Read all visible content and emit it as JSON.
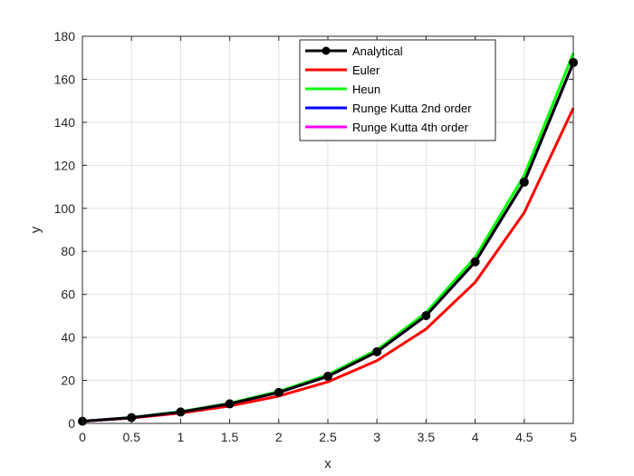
{
  "chart_data": {
    "type": "line",
    "title": "",
    "xlabel": "x",
    "ylabel": "y",
    "xlim": [
      0,
      5
    ],
    "ylim": [
      0,
      180
    ],
    "xticks": [
      0,
      0.5,
      1,
      1.5,
      2,
      2.5,
      3,
      3.5,
      4,
      4.5,
      5
    ],
    "yticks": [
      0,
      20,
      40,
      60,
      80,
      100,
      120,
      140,
      160,
      180
    ],
    "x_tick_labels": [
      "0",
      "0.5",
      "1",
      "1.5",
      "2",
      "2.5",
      "3",
      "3.5",
      "4",
      "4.5",
      "5"
    ],
    "y_tick_labels": [
      "0",
      "20",
      "40",
      "60",
      "80",
      "100",
      "120",
      "140",
      "160",
      "180"
    ],
    "grid": true,
    "legend_position": "top-right",
    "x": [
      0,
      0.5,
      1,
      1.5,
      2,
      2.5,
      3,
      3.5,
      4,
      4.5,
      5
    ],
    "series": [
      {
        "name": "Analytical",
        "color": "#000000",
        "marker": "circle",
        "values": [
          1,
          2.7,
          5.3,
          9.1,
          14.4,
          21.9,
          33.3,
          50.1,
          75.1,
          112.2,
          167.8
        ]
      },
      {
        "name": "Euler",
        "color": "#ff0000",
        "marker": "none",
        "values": [
          1,
          2.5,
          4.8,
          8.1,
          12.7,
          19.3,
          29.2,
          43.9,
          65.6,
          98.0,
          146.6
        ]
      },
      {
        "name": "Heun",
        "color": "#00ff00",
        "marker": "none",
        "values": [
          1,
          2.8,
          5.5,
          9.4,
          14.9,
          22.6,
          34.2,
          51.5,
          77.2,
          115.4,
          172.1
        ]
      },
      {
        "name": "Runge Kutta 2nd order",
        "color": "#0000ff",
        "marker": "none",
        "values": [
          1,
          2.7,
          5.3,
          9.1,
          14.4,
          21.9,
          33.3,
          50.1,
          75.0,
          112.1,
          167.6
        ]
      },
      {
        "name": "Runge Kutta 4th order",
        "color": "#ff00ff",
        "marker": "none",
        "values": [
          1,
          2.7,
          5.3,
          9.1,
          14.4,
          21.9,
          33.3,
          50.1,
          75.1,
          112.2,
          167.8
        ]
      }
    ]
  }
}
